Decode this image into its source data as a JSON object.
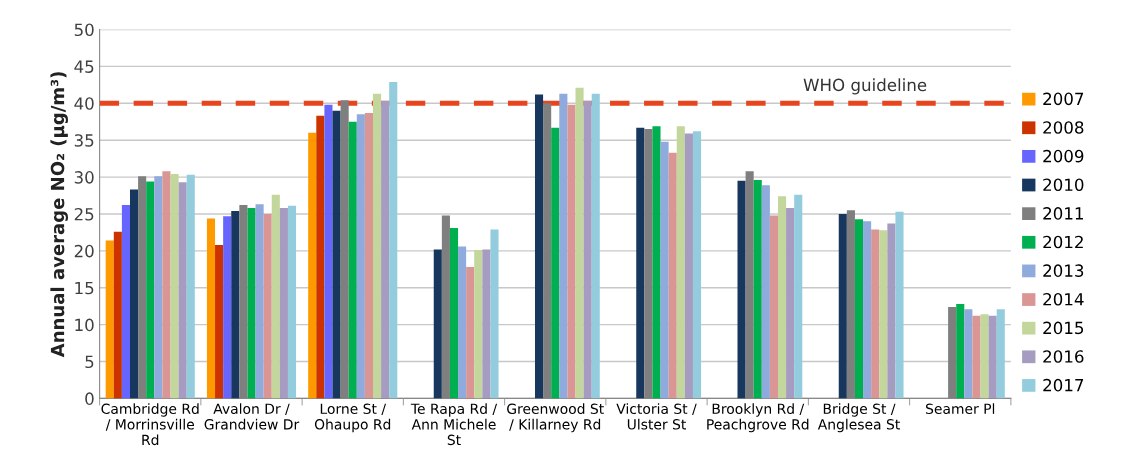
{
  "chart_data": {
    "type": "bar",
    "ylabel": "Annual average NO₂ (µg/m³)",
    "categories": [
      "Cambridge Rd\n/ Morrinsville\nRd",
      "Avalon Dr /\nGrandview Dr",
      "Lorne St /\nOhaupo Rd",
      "Te Rapa Rd /\nAnn Michele\nSt",
      "Greenwood St\n/ Killarney Rd",
      "Victoria St /\nUlster St",
      "Brooklyn Rd /\nPeachgrove Rd",
      "Bridge St /\nAnglesea St",
      "Seamer Pl"
    ],
    "series": [
      {
        "name": "2007",
        "color": "#ff9900",
        "values": [
          21.4,
          24.4,
          36.0,
          null,
          null,
          null,
          null,
          null,
          null
        ]
      },
      {
        "name": "2008",
        "color": "#cc3300",
        "values": [
          22.6,
          20.8,
          38.3,
          null,
          null,
          null,
          null,
          null,
          null
        ]
      },
      {
        "name": "2009",
        "color": "#6666ff",
        "values": [
          26.2,
          24.7,
          39.8,
          null,
          null,
          null,
          null,
          null,
          null
        ]
      },
      {
        "name": "2010",
        "color": "#17375e",
        "values": [
          28.3,
          25.4,
          39.0,
          20.2,
          41.2,
          36.7,
          29.5,
          25.0,
          null
        ]
      },
      {
        "name": "2011",
        "color": "#7f7f7f",
        "values": [
          30.1,
          26.2,
          40.4,
          24.8,
          40.0,
          36.5,
          30.8,
          25.5,
          12.4
        ]
      },
      {
        "name": "2012",
        "color": "#00b050",
        "values": [
          29.4,
          25.8,
          37.5,
          23.1,
          36.7,
          36.9,
          29.6,
          24.3,
          12.8
        ]
      },
      {
        "name": "2013",
        "color": "#8faadc",
        "values": [
          30.1,
          26.3,
          38.5,
          20.6,
          41.3,
          34.8,
          28.9,
          24.0,
          12.1
        ]
      },
      {
        "name": "2014",
        "color": "#d99694",
        "values": [
          30.8,
          25.0,
          38.7,
          17.8,
          39.8,
          33.3,
          24.8,
          22.9,
          11.2
        ]
      },
      {
        "name": "2015",
        "color": "#c3d69b",
        "values": [
          30.4,
          27.6,
          41.3,
          20.1,
          42.1,
          36.9,
          27.4,
          22.8,
          11.4
        ]
      },
      {
        "name": "2016",
        "color": "#a69bc1",
        "values": [
          29.3,
          25.8,
          40.3,
          20.2,
          40.3,
          35.9,
          25.8,
          23.7,
          11.2
        ]
      },
      {
        "name": "2017",
        "color": "#93cddd",
        "values": [
          30.3,
          26.1,
          42.9,
          22.9,
          41.3,
          36.2,
          27.6,
          25.3,
          12.1
        ]
      }
    ],
    "ylim": [
      0,
      50
    ],
    "yticks": [
      0,
      5,
      10,
      15,
      20,
      25,
      30,
      35,
      40,
      45,
      50
    ],
    "ref_lines": [
      {
        "axis": "y",
        "value": 40,
        "label": "WHO guideline",
        "color": "#e8451e",
        "line_style": "dashed"
      }
    ],
    "grid": "y",
    "legend": "right"
  }
}
